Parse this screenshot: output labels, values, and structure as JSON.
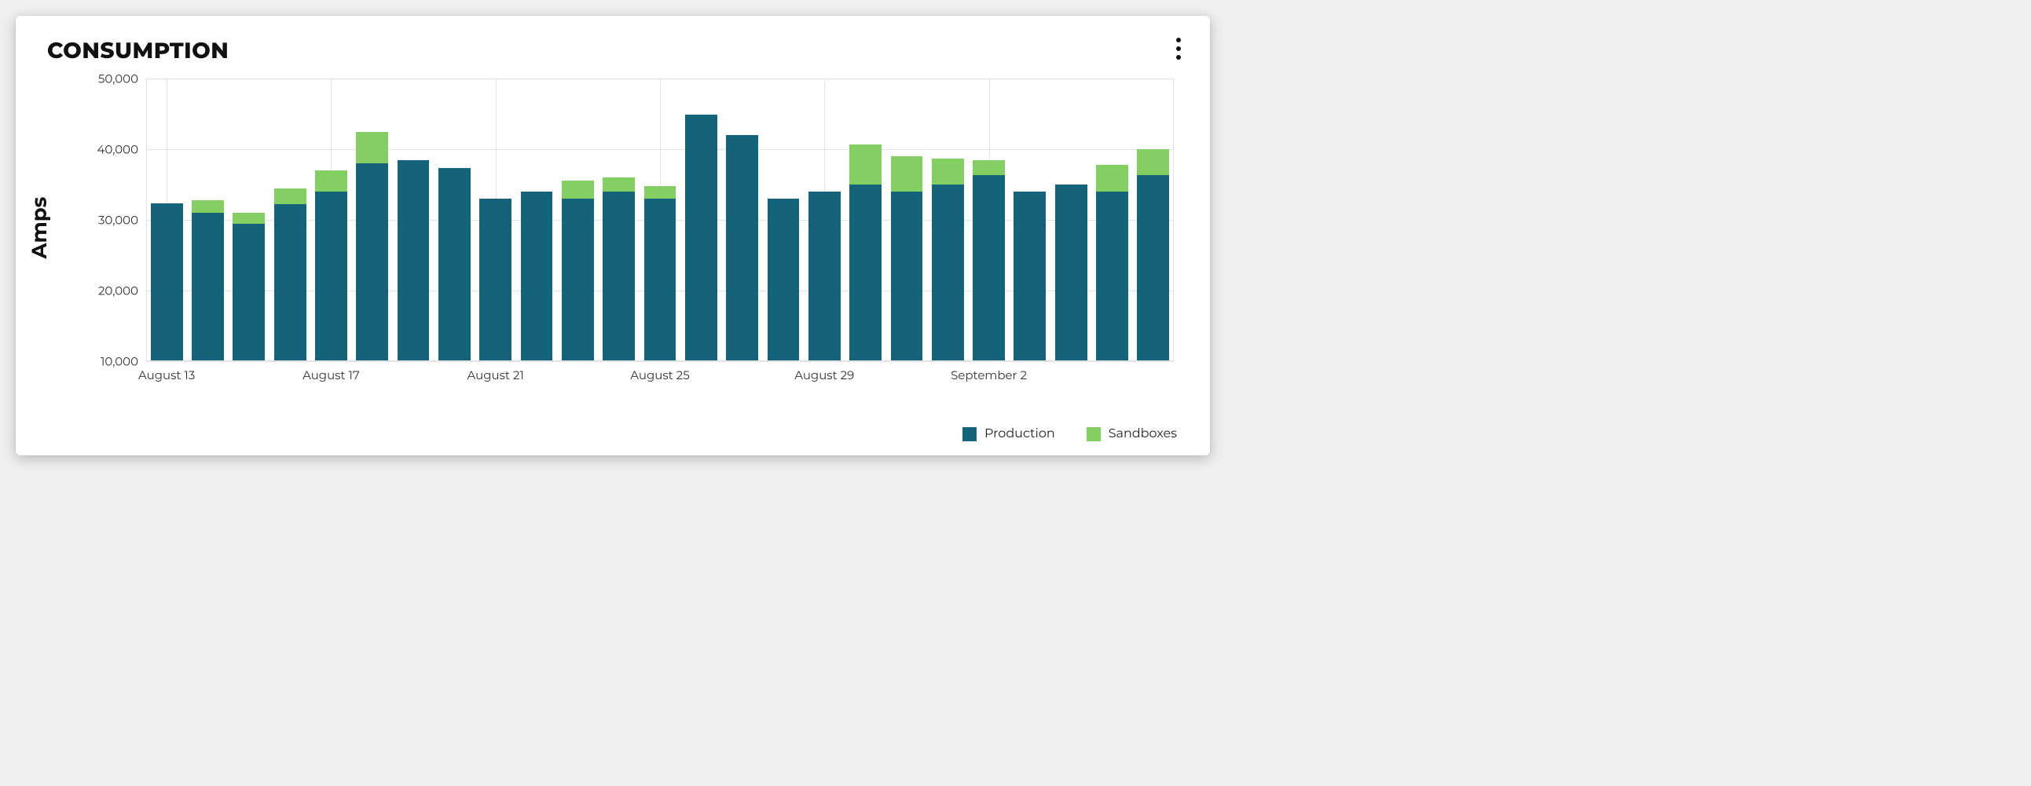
{
  "card": {
    "title": "CONSUMPTION",
    "menu_icon_name": "more-vertical"
  },
  "chart": {
    "type": "stacked-bar",
    "y_axis_label": "Amps",
    "y_min": 10000,
    "y_max": 50000,
    "y_ticks": [
      {
        "value": 10000,
        "label": "10,000"
      },
      {
        "value": 20000,
        "label": "20,000"
      },
      {
        "value": 30000,
        "label": "30,000"
      },
      {
        "value": 40000,
        "label": "40,000"
      },
      {
        "value": 50000,
        "label": "50,000"
      }
    ],
    "x_tick_every": 4,
    "x_tick_labels": {
      "1": "August 13",
      "5": "August 17",
      "9": "August 21",
      "13": "August 25",
      "17": "August 29",
      "21": "September 2"
    },
    "series": [
      {
        "key": "production",
        "label": "Production",
        "color": "#13647a"
      },
      {
        "key": "sandboxes",
        "label": "Sandboxes",
        "color": "#84cf62"
      }
    ],
    "bar_width_ratio": 0.78,
    "background_color": "#ffffff",
    "grid_color": "#e3e3e3",
    "data": [
      {
        "production": 32300,
        "sandboxes": 0
      },
      {
        "production": 31000,
        "sandboxes": 1800
      },
      {
        "production": 29500,
        "sandboxes": 1500
      },
      {
        "production": 32200,
        "sandboxes": 2300
      },
      {
        "production": 34000,
        "sandboxes": 3000
      },
      {
        "production": 38000,
        "sandboxes": 4500
      },
      {
        "production": 38500,
        "sandboxes": 0
      },
      {
        "production": 37300,
        "sandboxes": 0
      },
      {
        "production": 33000,
        "sandboxes": 0
      },
      {
        "production": 34000,
        "sandboxes": 0
      },
      {
        "production": 33000,
        "sandboxes": 2600
      },
      {
        "production": 34000,
        "sandboxes": 2000
      },
      {
        "production": 33000,
        "sandboxes": 1800
      },
      {
        "production": 44900,
        "sandboxes": 0
      },
      {
        "production": 42000,
        "sandboxes": 0
      },
      {
        "production": 33000,
        "sandboxes": 0
      },
      {
        "production": 34000,
        "sandboxes": 0
      },
      {
        "production": 35000,
        "sandboxes": 5700
      },
      {
        "production": 34000,
        "sandboxes": 5000
      },
      {
        "production": 35000,
        "sandboxes": 3700
      },
      {
        "production": 36300,
        "sandboxes": 2200
      },
      {
        "production": 34000,
        "sandboxes": 0
      },
      {
        "production": 35000,
        "sandboxes": 0
      },
      {
        "production": 34000,
        "sandboxes": 3800
      },
      {
        "production": 36300,
        "sandboxes": 3700
      }
    ],
    "tick_fontsize": 15,
    "axis_label_fontsize": 26,
    "title_fontsize": 28
  }
}
